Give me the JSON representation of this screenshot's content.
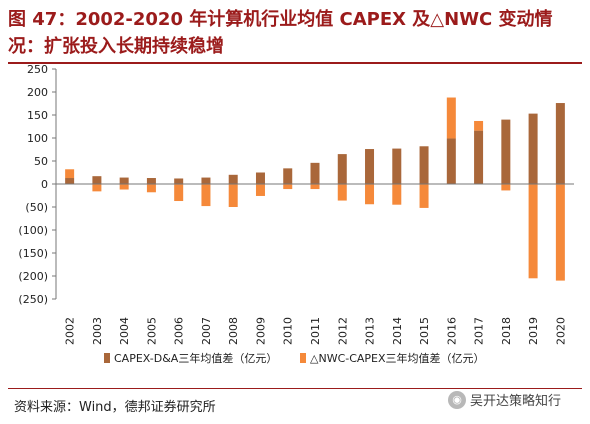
{
  "header": {
    "title": "图 47：2002-2020 年计算机行业均值 CAPEX 及△NWC 变动情况：扩张投入长期持续稳增"
  },
  "footer": {
    "source": "资料来源：Wind，德邦证券研究所",
    "watermark": "吴开达策略知行"
  },
  "chart_data": {
    "type": "bar",
    "stacked": true,
    "categories": [
      "2002",
      "2003",
      "2004",
      "2005",
      "2006",
      "2007",
      "2008",
      "2009",
      "2010",
      "2011",
      "2012",
      "2013",
      "2014",
      "2015",
      "2016",
      "2017",
      "2018",
      "2019",
      "2020"
    ],
    "series": [
      {
        "name": "CAPEX-D&A三年均值差（亿元）",
        "color": "#a9673a",
        "values": [
          13,
          17,
          14,
          13,
          12,
          14,
          20,
          25,
          34,
          46,
          65,
          76,
          77,
          82,
          99,
          116,
          140,
          153,
          176
        ]
      },
      {
        "name": "△NWC-CAPEX三年均值差（亿元）",
        "color": "#f5893a",
        "values": [
          19,
          -16,
          -12,
          -18,
          -37,
          -48,
          -50,
          -26,
          -11,
          -11,
          -36,
          -44,
          -45,
          -52,
          89,
          21,
          -14,
          -205,
          -210
        ]
      }
    ],
    "ylim": [
      -250,
      250
    ],
    "yticks": [
      {
        "v": 250,
        "label": "250"
      },
      {
        "v": 200,
        "label": "200"
      },
      {
        "v": 150,
        "label": "150"
      },
      {
        "v": 100,
        "label": "100"
      },
      {
        "v": 50,
        "label": "50"
      },
      {
        "v": 0,
        "label": "0"
      },
      {
        "v": -50,
        "label": "(50)"
      },
      {
        "v": -100,
        "label": "(100)"
      },
      {
        "v": -150,
        "label": "(150)"
      },
      {
        "v": -200,
        "label": "(200)"
      },
      {
        "v": -250,
        "label": "(250)"
      }
    ],
    "legend_position": "bottom",
    "grid": false
  }
}
